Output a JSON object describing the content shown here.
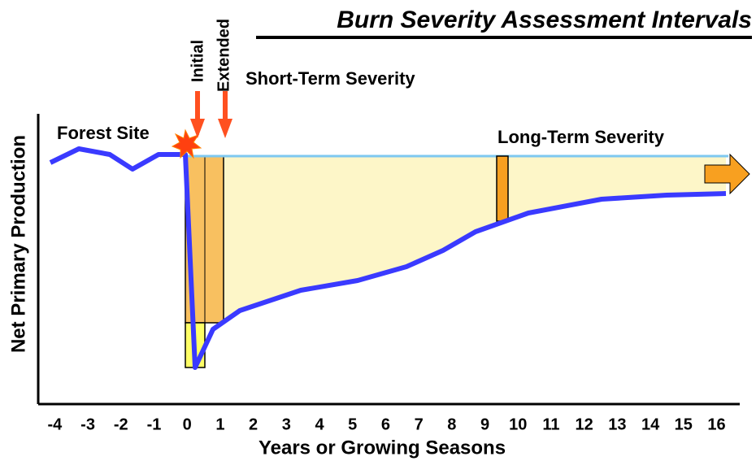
{
  "chart_data": {
    "type": "line",
    "title": "Burn Severity Assessment Intervals",
    "x_label": "Years or Growing Seasons",
    "y_label": "Net Primary Production",
    "annotations": [
      "Initial",
      "Extended",
      "Short-Term Severity",
      "Forest Site",
      "Long-Term Severity"
    ],
    "xlim": [
      -4.5,
      16.7
    ],
    "xticks": [
      -4,
      -3,
      -2,
      -1,
      0,
      1,
      2,
      3,
      4,
      5,
      6,
      7,
      8,
      9,
      10,
      11,
      12,
      13,
      14,
      15,
      16
    ]
  }
}
